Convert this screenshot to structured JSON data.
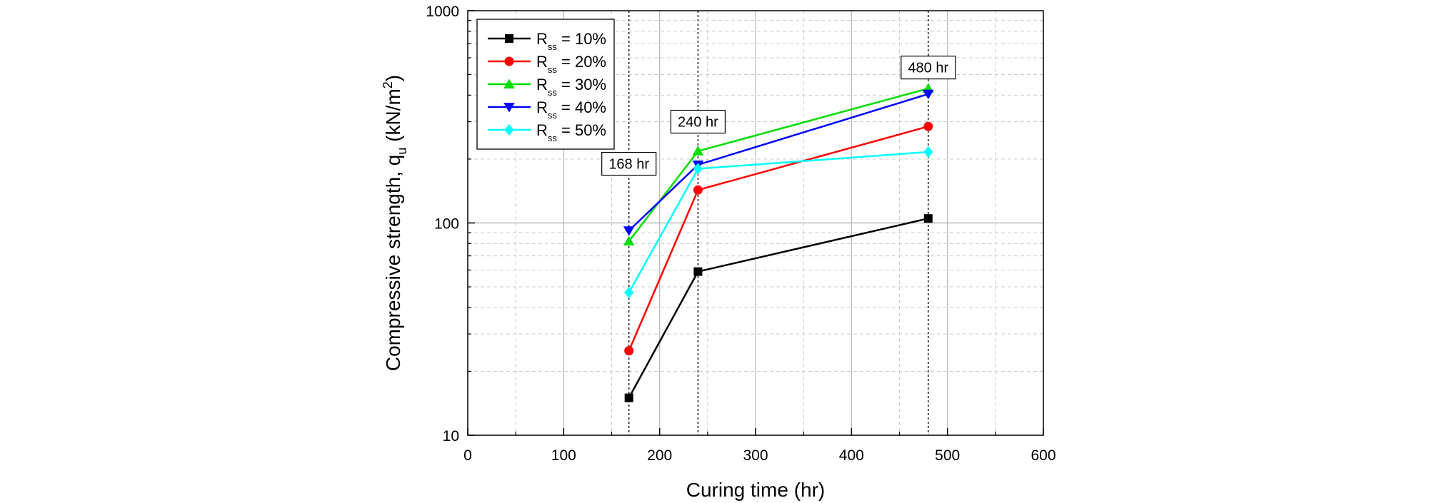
{
  "chart_data": {
    "type": "line",
    "title": "",
    "xlabel": "Curing time (hr)",
    "ylabel": {
      "main": "Compressive strength, q",
      "sub": "u",
      "units_pre": " (kN/m",
      "units_sup": "2",
      "units_post": ")"
    },
    "xlim": [
      0,
      600
    ],
    "ylim": [
      10,
      1000
    ],
    "yscale": "log",
    "grid": true,
    "x_ticks": [
      0,
      100,
      200,
      300,
      400,
      500,
      600
    ],
    "x_tick_labels": [
      "0",
      "100",
      "200",
      "300",
      "400",
      "500",
      "600"
    ],
    "y_ticks": [
      10,
      100,
      1000
    ],
    "y_tick_labels": [
      "10",
      "100",
      "1000"
    ],
    "x": [
      168,
      240,
      480
    ],
    "legend_position": "top-left",
    "series": [
      {
        "name": "R",
        "sub": "ss",
        "suffix": " = 10%",
        "color": "#000000",
        "marker": "square",
        "values": [
          15,
          59,
          105
        ]
      },
      {
        "name": "R",
        "sub": "ss",
        "suffix": " = 20%",
        "color": "#ff0000",
        "marker": "circle",
        "values": [
          25,
          143,
          285
        ]
      },
      {
        "name": "R",
        "sub": "ss",
        "suffix": " = 30%",
        "color": "#00dd00",
        "marker": "triangle-up",
        "values": [
          82,
          218,
          430
        ]
      },
      {
        "name": "R",
        "sub": "ss",
        "suffix": " = 40%",
        "color": "#0000ff",
        "marker": "triangle-down",
        "values": [
          92,
          188,
          405
        ]
      },
      {
        "name": "R",
        "sub": "ss",
        "suffix": " = 50%",
        "color": "#00ffff",
        "marker": "diamond",
        "values": [
          47,
          180,
          216
        ]
      }
    ],
    "vlines": [
      168,
      240,
      480
    ],
    "annotations": [
      {
        "text": "168 hr",
        "x": 168,
        "y": 190
      },
      {
        "text": "240 hr",
        "x": 240,
        "y": 300
      },
      {
        "text": "480 hr",
        "x": 480,
        "y": 540
      }
    ]
  }
}
